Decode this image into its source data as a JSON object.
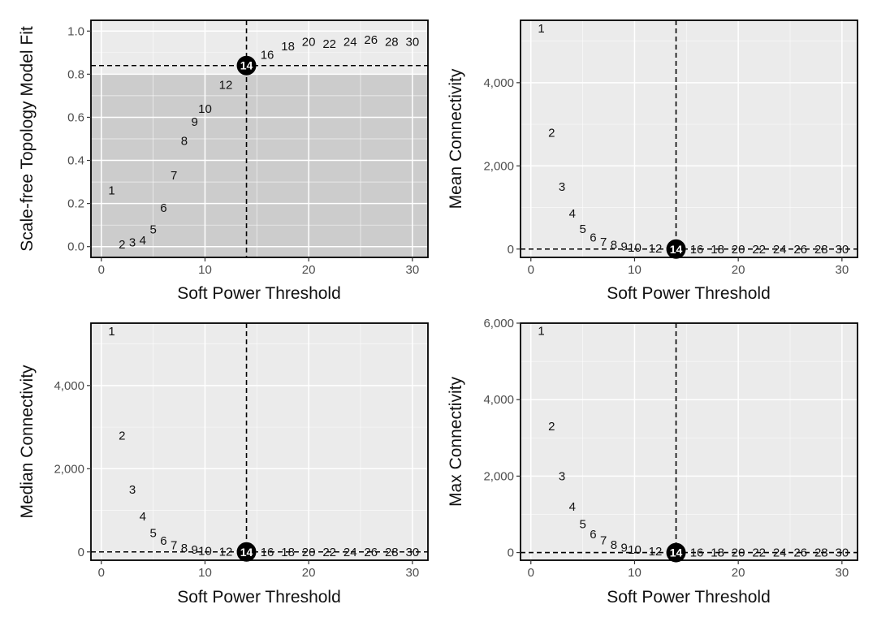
{
  "chart_data": [
    {
      "type": "scatter",
      "xlabel": "Soft Power Threshold",
      "ylabel": "Scale-free Topology Model Fit",
      "xlim": [
        -1,
        31.5
      ],
      "ylim": [
        -0.05,
        1.05
      ],
      "xticks": [
        0,
        10,
        20,
        30
      ],
      "yticks": [
        0.0,
        0.2,
        0.4,
        0.6,
        0.8,
        1.0
      ],
      "ytick_labels": [
        "0.0",
        "0.2",
        "0.4",
        "0.6",
        "0.8",
        "1.0"
      ],
      "x": [
        1,
        2,
        3,
        4,
        5,
        6,
        7,
        8,
        9,
        10,
        12,
        14,
        16,
        18,
        20,
        22,
        24,
        26,
        28,
        30
      ],
      "y": [
        0.26,
        0.01,
        0.02,
        0.03,
        0.08,
        0.18,
        0.33,
        0.49,
        0.58,
        0.64,
        0.75,
        0.84,
        0.89,
        0.93,
        0.95,
        0.94,
        0.95,
        0.96,
        0.95,
        0.95
      ],
      "labels": [
        "1",
        "2",
        "3",
        "4",
        "5",
        "6",
        "7",
        "8",
        "9",
        "10",
        "12",
        "14",
        "16",
        "18",
        "20",
        "22",
        "24",
        "26",
        "28",
        "30"
      ],
      "highlight": {
        "x": 14,
        "y": 0.84,
        "label": "14"
      },
      "threshold_band": {
        "ymin": -0.05,
        "ymax": 0.8
      },
      "hline": 0.84,
      "vline": 14,
      "grid": true
    },
    {
      "type": "scatter",
      "xlabel": "Soft Power Threshold",
      "ylabel": "Mean Connectivity",
      "xlim": [
        -1,
        31.5
      ],
      "ylim": [
        -200,
        5500
      ],
      "xticks": [
        0,
        10,
        20,
        30
      ],
      "yticks": [
        0,
        2000,
        4000
      ],
      "ytick_labels": [
        "0",
        "2,000",
        "4,000"
      ],
      "x": [
        1,
        2,
        3,
        4,
        5,
        6,
        7,
        8,
        9,
        10,
        12,
        14,
        16,
        18,
        20,
        22,
        24,
        26,
        28,
        30
      ],
      "y": [
        5300,
        2800,
        1500,
        850,
        480,
        280,
        170,
        100,
        60,
        30,
        10,
        0,
        0,
        0,
        0,
        0,
        0,
        0,
        0,
        0
      ],
      "labels": [
        "1",
        "2",
        "3",
        "4",
        "5",
        "6",
        "7",
        "8",
        "9",
        "10",
        "12",
        "14",
        "16",
        "18",
        "20",
        "22",
        "24",
        "26",
        "28",
        "30"
      ],
      "highlight": {
        "x": 14,
        "y": 0,
        "label": "14"
      },
      "hline": 0,
      "vline": 14,
      "grid": true
    },
    {
      "type": "scatter",
      "xlabel": "Soft Power Threshold",
      "ylabel": "Median Connectivity",
      "xlim": [
        -1,
        31.5
      ],
      "ylim": [
        -200,
        5500
      ],
      "xticks": [
        0,
        10,
        20,
        30
      ],
      "yticks": [
        0,
        2000,
        4000
      ],
      "ytick_labels": [
        "0",
        "2,000",
        "4,000"
      ],
      "x": [
        1,
        2,
        3,
        4,
        5,
        6,
        7,
        8,
        9,
        10,
        12,
        14,
        16,
        18,
        20,
        22,
        24,
        26,
        28,
        30
      ],
      "y": [
        5300,
        2800,
        1500,
        850,
        450,
        270,
        160,
        90,
        50,
        25,
        8,
        0,
        0,
        0,
        0,
        0,
        0,
        0,
        0,
        0
      ],
      "labels": [
        "1",
        "2",
        "3",
        "4",
        "5",
        "6",
        "7",
        "8",
        "9",
        "10",
        "12",
        "14",
        "16",
        "18",
        "20",
        "22",
        "24",
        "26",
        "28",
        "30"
      ],
      "highlight": {
        "x": 14,
        "y": 0,
        "label": "14"
      },
      "hline": 0,
      "vline": 14,
      "grid": true
    },
    {
      "type": "scatter",
      "xlabel": "Soft Power Threshold",
      "ylabel": "Max Connectivity",
      "xlim": [
        -1,
        31.5
      ],
      "ylim": [
        -200,
        6000
      ],
      "xticks": [
        0,
        10,
        20,
        30
      ],
      "yticks": [
        0,
        2000,
        4000,
        6000
      ],
      "ytick_labels": [
        "0",
        "2,000",
        "4,000",
        "6,000"
      ],
      "x": [
        1,
        2,
        3,
        4,
        5,
        6,
        7,
        8,
        9,
        10,
        12,
        14,
        16,
        18,
        20,
        22,
        24,
        26,
        28,
        30
      ],
      "y": [
        5800,
        3300,
        2000,
        1200,
        750,
        480,
        320,
        200,
        130,
        80,
        30,
        0,
        0,
        0,
        0,
        0,
        0,
        0,
        0,
        0
      ],
      "labels": [
        "1",
        "2",
        "3",
        "4",
        "5",
        "6",
        "7",
        "8",
        "9",
        "10",
        "12",
        "14",
        "16",
        "18",
        "20",
        "22",
        "24",
        "26",
        "28",
        "30"
      ],
      "highlight": {
        "x": 14,
        "y": 0,
        "label": "14"
      },
      "hline": 0,
      "vline": 14,
      "grid": true
    }
  ]
}
